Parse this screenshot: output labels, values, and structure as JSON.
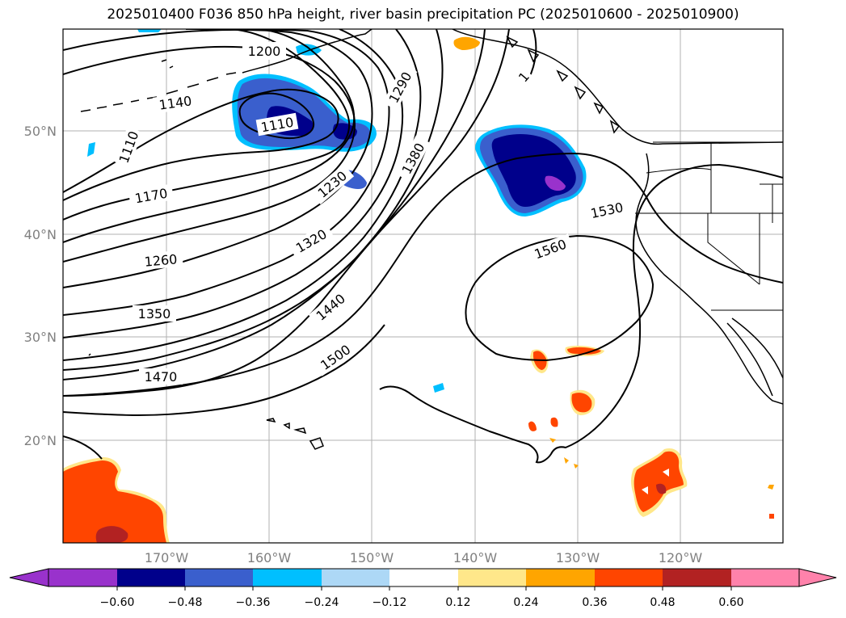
{
  "title": "2025010400 F036 850 hPa height, river basin precipitation PC (2025010600 - 2025010900)",
  "lat_labels": [
    "50°N",
    "40°N",
    "30°N",
    "20°N"
  ],
  "lon_labels": [
    "170°W",
    "160°W",
    "150°W",
    "140°W",
    "130°W",
    "120°W"
  ],
  "contour_labels": [
    "1200",
    "1140",
    "1110",
    "1110",
    "1170",
    "1290",
    "1380",
    "1230",
    "1320",
    "1260",
    "1350",
    "1440",
    "1500",
    "1470",
    "1530",
    "1560",
    "1"
  ],
  "colorbar": {
    "ticks": [
      "−0.60",
      "−0.48",
      "−0.36",
      "−0.24",
      "−0.12",
      "0.12",
      "0.24",
      "0.36",
      "0.48",
      "0.60"
    ],
    "colors": [
      "#9932cc",
      "#00008b",
      "#3a5fcd",
      "#00bfff",
      "#add8f6",
      "#ffffff",
      "#ffe78a",
      "#ffa500",
      "#ff4500",
      "#b22222",
      "#ff82ab"
    ]
  },
  "colors": {
    "contour": "#000000",
    "coast": "#000000",
    "grid": "#b0b0b0",
    "axis_text": "#808080"
  }
}
